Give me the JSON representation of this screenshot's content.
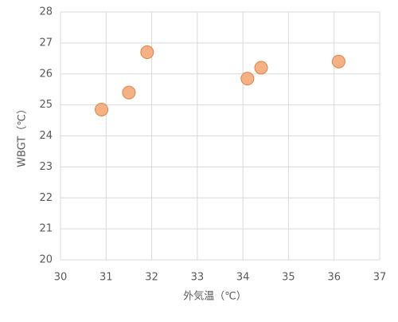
{
  "chart_data": {
    "type": "scatter",
    "x_label": "外気温（℃）",
    "y_label": "WBGT（℃）",
    "series": [
      {
        "color": "#f4b183",
        "x": [
          30.9,
          31.5,
          31.9,
          34.1,
          34.4,
          36.1
        ],
        "values": [
          24.85,
          25.4,
          26.7,
          25.85,
          26.2,
          26.4
        ]
      }
    ],
    "xlim": [
      30,
      37
    ],
    "xticks": [
      30,
      31,
      32,
      33,
      34,
      35,
      36,
      37
    ],
    "ylim": [
      20,
      28
    ],
    "yticks": [
      20,
      21,
      22,
      23,
      24,
      25,
      26,
      27,
      28
    ],
    "grid": true
  }
}
